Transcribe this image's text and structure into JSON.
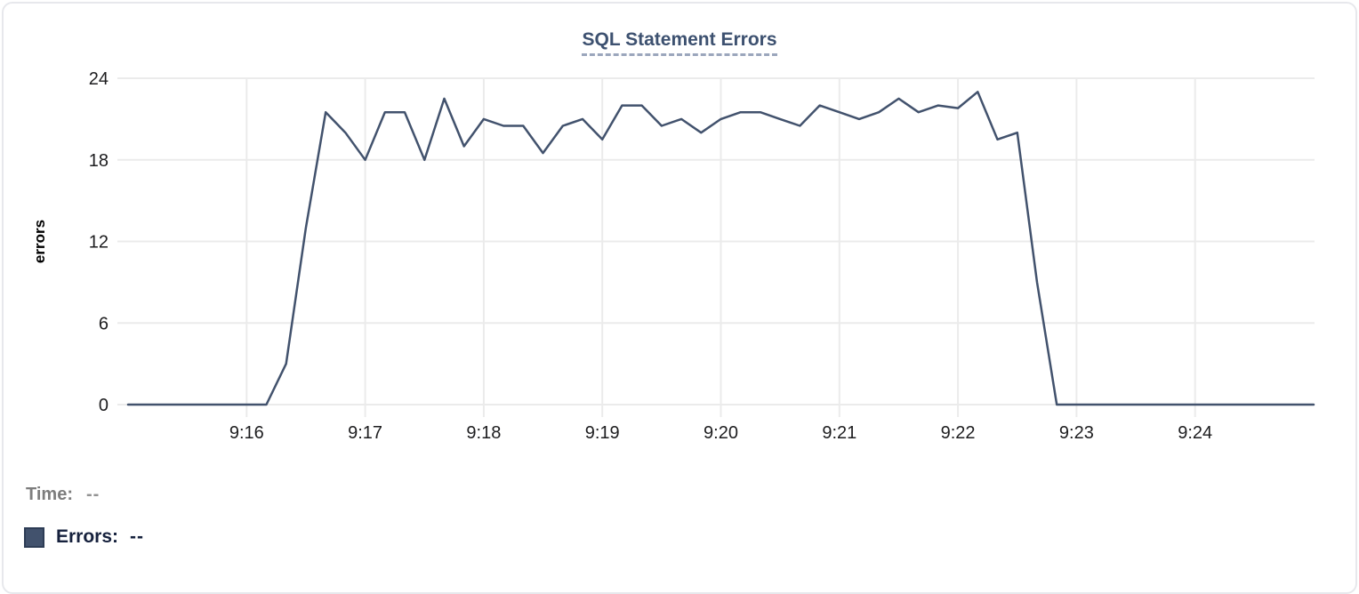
{
  "chart_data": {
    "type": "line",
    "title": "SQL Statement Errors",
    "xlabel": "",
    "ylabel": "errors",
    "ylim": [
      0,
      24
    ],
    "yticks": [
      0,
      6,
      12,
      18,
      24
    ],
    "xticks": [
      "9:16",
      "9:17",
      "9:18",
      "9:19",
      "9:20",
      "9:21",
      "9:22",
      "9:23",
      "9:24"
    ],
    "x_range": [
      "9:15:00",
      "9:25:00"
    ],
    "grid": true,
    "x": [
      "9:15:00",
      "9:15:10",
      "9:15:20",
      "9:15:30",
      "9:15:40",
      "9:15:50",
      "9:16:00",
      "9:16:10",
      "9:16:20",
      "9:16:30",
      "9:16:40",
      "9:16:50",
      "9:17:00",
      "9:17:10",
      "9:17:20",
      "9:17:30",
      "9:17:40",
      "9:17:50",
      "9:18:00",
      "9:18:10",
      "9:18:20",
      "9:18:30",
      "9:18:40",
      "9:18:50",
      "9:19:00",
      "9:19:10",
      "9:19:20",
      "9:19:30",
      "9:19:40",
      "9:19:50",
      "9:20:00",
      "9:20:10",
      "9:20:20",
      "9:20:30",
      "9:20:40",
      "9:20:50",
      "9:21:00",
      "9:21:10",
      "9:21:20",
      "9:21:30",
      "9:21:40",
      "9:21:50",
      "9:22:00",
      "9:22:10",
      "9:22:20",
      "9:22:30",
      "9:22:40",
      "9:22:50",
      "9:23:00",
      "9:23:10",
      "9:23:20",
      "9:23:30",
      "9:23:40",
      "9:23:50",
      "9:24:00",
      "9:24:10",
      "9:24:20",
      "9:24:30",
      "9:24:40",
      "9:24:50",
      "9:25:00"
    ],
    "series": [
      {
        "name": "Errors",
        "color": "#42526d",
        "values": [
          0,
          0,
          0,
          0,
          0,
          0,
          0,
          0,
          3,
          13,
          21.5,
          20,
          18,
          21.5,
          21.5,
          18,
          22.5,
          19,
          21,
          20.5,
          20.5,
          18.5,
          20.5,
          21,
          19.5,
          22,
          22,
          20.5,
          21,
          20,
          21,
          21.5,
          21.5,
          21,
          20.5,
          22,
          21.5,
          21,
          21.5,
          22.5,
          21.5,
          22,
          21.8,
          23,
          19.5,
          20,
          9,
          0,
          0,
          0,
          0,
          0,
          0,
          0,
          0,
          0,
          0,
          0,
          0,
          0,
          0
        ]
      }
    ],
    "legend_position": "bottom-left"
  },
  "legend": {
    "time_label": "Time:",
    "time_value": "--",
    "errors_label": "Errors:",
    "errors_value": "--"
  },
  "colors": {
    "line": "#42526d",
    "title": "#3d5170",
    "grid": "#ebebeb",
    "card_border": "#e7e8ec"
  }
}
